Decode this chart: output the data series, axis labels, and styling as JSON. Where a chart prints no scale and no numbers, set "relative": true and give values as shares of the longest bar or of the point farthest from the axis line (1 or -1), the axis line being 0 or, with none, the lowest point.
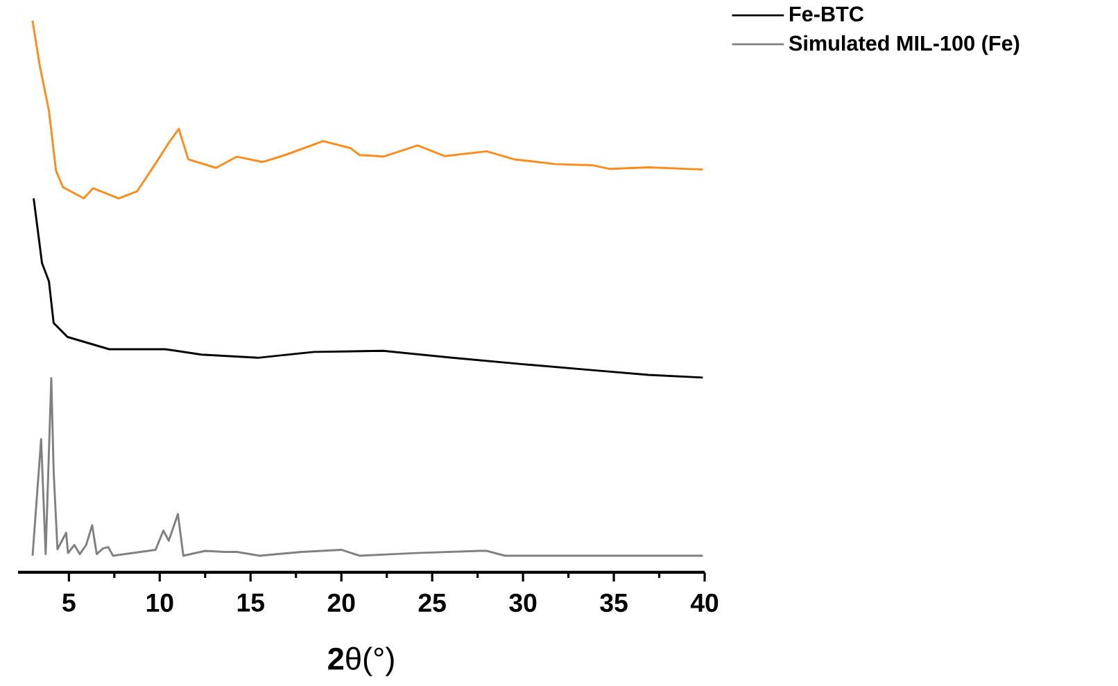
{
  "chart_data": {
    "type": "line",
    "relative": true,
    "xlabel": "**2**θ(°)",
    "xlim": [
      2.2,
      40
    ],
    "xticks": [
      5,
      10,
      15,
      20,
      25,
      30,
      35,
      40
    ],
    "legend": "top right",
    "series": [
      {
        "color": "#ff8c1a",
        "x": [
          3.0,
          3.39,
          3.9,
          4.29,
          4.67,
          5.82,
          6.33,
          7.74,
          8.75,
          9.77,
          10.5,
          11.05,
          11.57,
          13.1,
          14.25,
          15.65,
          16.9,
          19.0,
          20.5,
          21.0,
          22.0,
          22.3,
          24.2,
          25.7,
          28.0,
          29.5,
          31.8,
          33.8,
          34.8,
          36.9,
          39.9
        ],
        "values": [
          1.0,
          0.917,
          0.832,
          0.72,
          0.689,
          0.668,
          0.687,
          0.668,
          0.681,
          0.733,
          0.772,
          0.798,
          0.741,
          0.725,
          0.746,
          0.736,
          0.749,
          0.775,
          0.762,
          0.749,
          0.747,
          0.746,
          0.767,
          0.747,
          0.756,
          0.741,
          0.732,
          0.73,
          0.723,
          0.726,
          0.722
        ]
      },
      {
        "name": "Fe-BTC",
        "color": "#000000",
        "x": [
          3.06,
          3.52,
          3.9,
          4.16,
          4.92,
          7.22,
          10.3,
          12.3,
          15.4,
          18.5,
          22.3,
          26.1,
          30.0,
          33.8,
          36.9,
          39.9
        ],
        "values": [
          0.668,
          0.547,
          0.513,
          0.435,
          0.409,
          0.386,
          0.386,
          0.376,
          0.37,
          0.381,
          0.383,
          0.37,
          0.358,
          0.347,
          0.338,
          0.333
        ]
      },
      {
        "name": "Simulated MIL-100 (Fe)",
        "color": "#808080",
        "x": [
          3.0,
          3.47,
          3.72,
          4.03,
          4.16,
          4.37,
          4.85,
          4.95,
          5.3,
          5.6,
          5.95,
          6.28,
          6.53,
          6.9,
          7.17,
          7.43,
          9.77,
          10.2,
          10.5,
          11.0,
          11.3,
          12.5,
          13.6,
          14.25,
          15.5,
          17.8,
          20.0,
          21.0,
          24.1,
          27.6,
          28.0,
          29.0,
          39.9
        ],
        "values": [
          0,
          0.218,
          0.003,
          0.332,
          0.158,
          0.012,
          0.043,
          0.005,
          0.02,
          0.003,
          0.02,
          0.057,
          0.003,
          0.014,
          0.016,
          0,
          0.011,
          0.047,
          0.028,
          0.078,
          0,
          0.009,
          0.007,
          0.007,
          0,
          0.007,
          0.011,
          0,
          0.005,
          0.009,
          0.009,
          0,
          0
        ]
      }
    ]
  }
}
